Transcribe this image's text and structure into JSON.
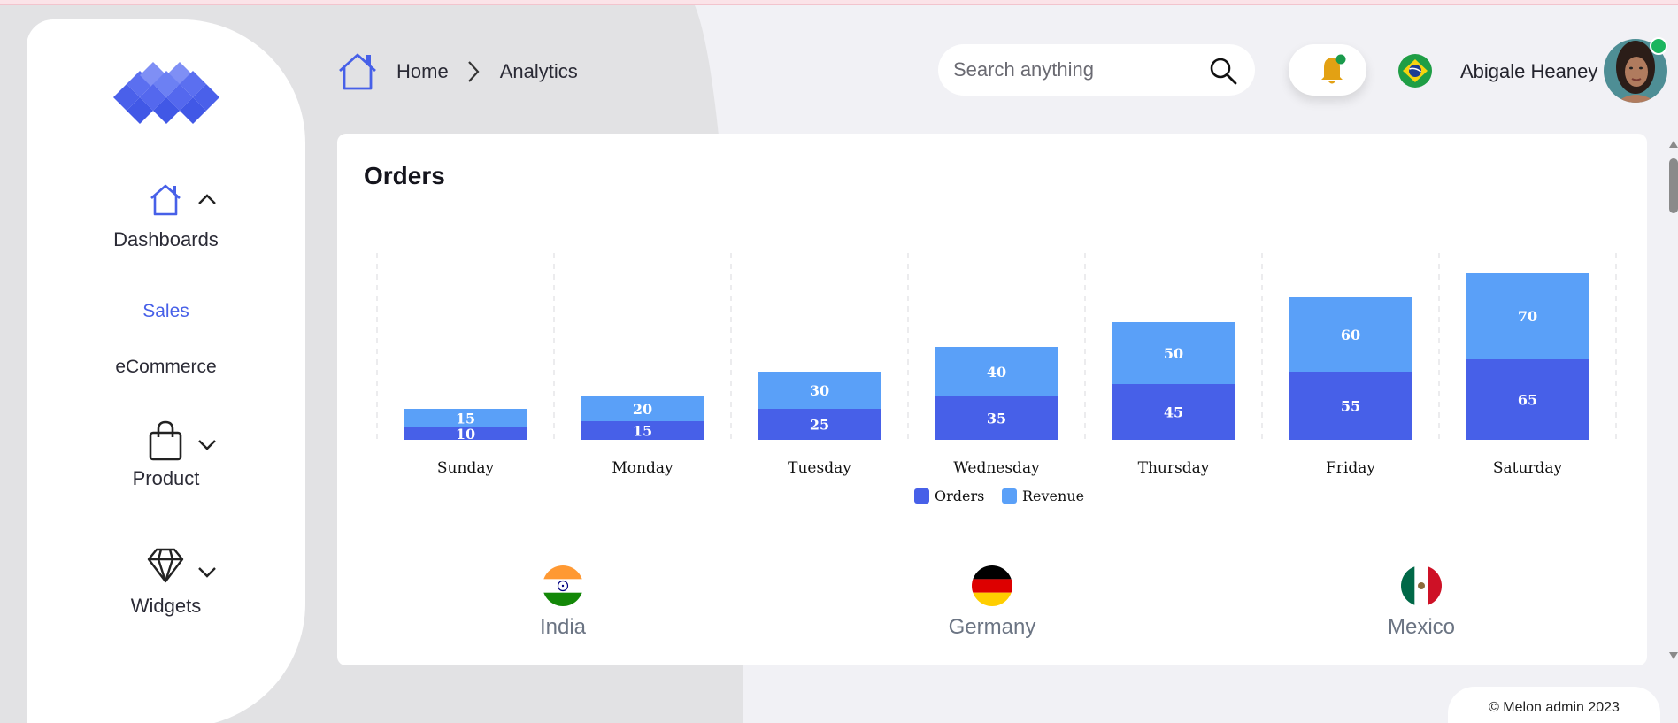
{
  "sidebar": {
    "dashboards_label": "Dashboards",
    "sales_label": "Sales",
    "ecommerce_label": "eCommerce",
    "product_label": "Product",
    "widgets_label": "Widgets"
  },
  "header": {
    "breadcrumb_home": "Home",
    "breadcrumb_current": "Analytics",
    "search_placeholder": "Search anything",
    "user_name": "Abigale Heaney"
  },
  "card": {
    "title": "Orders"
  },
  "chart_data": {
    "type": "bar",
    "stacked": true,
    "categories": [
      "Sunday",
      "Monday",
      "Tuesday",
      "Wednesday",
      "Thursday",
      "Friday",
      "Saturday"
    ],
    "series": [
      {
        "name": "Orders",
        "values": [
          10,
          15,
          25,
          35,
          45,
          55,
          65
        ],
        "color": "#4760e8"
      },
      {
        "name": "Revenue",
        "values": [
          15,
          20,
          30,
          40,
          50,
          60,
          70
        ],
        "color": "#5aa0f8"
      }
    ],
    "legend": "bottom-center",
    "grid": "vertical-dashed"
  },
  "countries": [
    {
      "name": "India"
    },
    {
      "name": "Germany"
    },
    {
      "name": "Mexico"
    }
  ],
  "footer": {
    "text": "© Melon admin 2023"
  }
}
